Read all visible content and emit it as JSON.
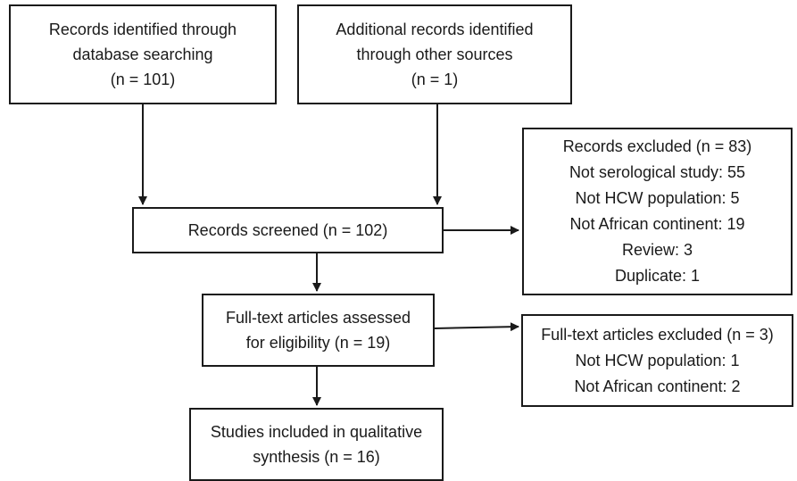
{
  "boxes": {
    "database": {
      "lines": [
        "Records identified through",
        "database searching",
        "(n = 101)"
      ]
    },
    "other_sources": {
      "lines": [
        "Additional records identified",
        "through other sources",
        "(n = 1)"
      ]
    },
    "screened": {
      "lines": [
        "Records screened (n = 102)"
      ]
    },
    "excluded_records": {
      "lines": [
        "Records excluded (n = 83)",
        "Not serological study: 55",
        "Not HCW population: 5",
        "Not African continent: 19",
        "Review: 3",
        "Duplicate: 1"
      ]
    },
    "fulltext_assessed": {
      "lines": [
        "Full-text articles assessed",
        "for eligibility (n = 19)"
      ]
    },
    "fulltext_excluded": {
      "lines": [
        "Full-text articles excluded (n = 3)",
        "Not HCW population: 1",
        "Not African continent: 2"
      ]
    },
    "included": {
      "lines": [
        "Studies included in qualitative",
        "synthesis (n = 16)"
      ]
    }
  },
  "colors": {
    "stroke": "#1a1a1a",
    "background": "#ffffff"
  }
}
